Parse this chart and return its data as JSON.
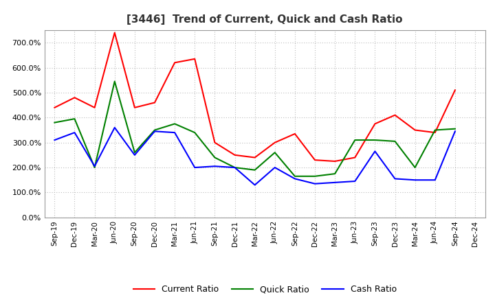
{
  "title": "[3446]  Trend of Current, Quick and Cash Ratio",
  "labels": [
    "Sep-19",
    "Dec-19",
    "Mar-20",
    "Jun-20",
    "Sep-20",
    "Dec-20",
    "Mar-21",
    "Jun-21",
    "Sep-21",
    "Dec-21",
    "Mar-22",
    "Jun-22",
    "Sep-22",
    "Dec-22",
    "Mar-23",
    "Jun-23",
    "Sep-23",
    "Dec-23",
    "Mar-24",
    "Jun-24",
    "Sep-24",
    "Dec-24"
  ],
  "current_ratio": [
    440,
    480,
    440,
    740,
    440,
    460,
    620,
    635,
    300,
    250,
    240,
    300,
    335,
    230,
    225,
    240,
    375,
    410,
    350,
    340,
    510,
    null
  ],
  "quick_ratio": [
    380,
    395,
    200,
    545,
    260,
    350,
    375,
    340,
    240,
    200,
    190,
    260,
    165,
    165,
    175,
    310,
    310,
    305,
    200,
    350,
    355,
    null
  ],
  "cash_ratio": [
    310,
    340,
    205,
    360,
    250,
    345,
    340,
    200,
    205,
    200,
    130,
    200,
    155,
    135,
    140,
    145,
    265,
    155,
    150,
    150,
    345,
    null
  ],
  "current_color": "#FF0000",
  "quick_color": "#008000",
  "cash_color": "#0000FF",
  "ylim": [
    0,
    750
  ],
  "yticks": [
    0,
    100,
    200,
    300,
    400,
    500,
    600,
    700
  ],
  "ytick_labels": [
    "0.0%",
    "100.0%",
    "200.0%",
    "300.0%",
    "400.0%",
    "500.0%",
    "600.0%",
    "700.0%"
  ],
  "grid_color": "#aaaaaa",
  "bg_color": "#ffffff",
  "legend_labels": [
    "Current Ratio",
    "Quick Ratio",
    "Cash Ratio"
  ]
}
